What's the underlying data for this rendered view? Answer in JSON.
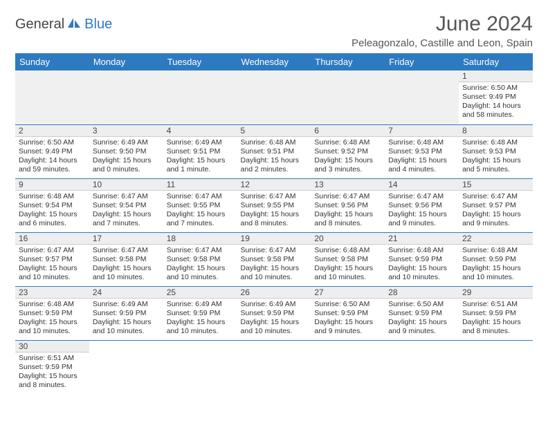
{
  "logo": {
    "part1": "General",
    "part2": "Blue"
  },
  "title": "June 2024",
  "location": "Peleagonzalo, Castille and Leon, Spain",
  "colors": {
    "header_bg": "#2d7ac0",
    "header_text": "#ffffff",
    "daynum_bg": "#eeeeee",
    "row_border": "#2d7ac0",
    "title_color": "#555555",
    "logo_gray": "#444444",
    "logo_blue": "#2d7ac0"
  },
  "daynames": [
    "Sunday",
    "Monday",
    "Tuesday",
    "Wednesday",
    "Thursday",
    "Friday",
    "Saturday"
  ],
  "weeks": [
    [
      null,
      null,
      null,
      null,
      null,
      null,
      {
        "n": "1",
        "sr": "Sunrise: 6:50 AM",
        "ss": "Sunset: 9:49 PM",
        "dl": "Daylight: 14 hours and 58 minutes."
      }
    ],
    [
      {
        "n": "2",
        "sr": "Sunrise: 6:50 AM",
        "ss": "Sunset: 9:49 PM",
        "dl": "Daylight: 14 hours and 59 minutes."
      },
      {
        "n": "3",
        "sr": "Sunrise: 6:49 AM",
        "ss": "Sunset: 9:50 PM",
        "dl": "Daylight: 15 hours and 0 minutes."
      },
      {
        "n": "4",
        "sr": "Sunrise: 6:49 AM",
        "ss": "Sunset: 9:51 PM",
        "dl": "Daylight: 15 hours and 1 minute."
      },
      {
        "n": "5",
        "sr": "Sunrise: 6:48 AM",
        "ss": "Sunset: 9:51 PM",
        "dl": "Daylight: 15 hours and 2 minutes."
      },
      {
        "n": "6",
        "sr": "Sunrise: 6:48 AM",
        "ss": "Sunset: 9:52 PM",
        "dl": "Daylight: 15 hours and 3 minutes."
      },
      {
        "n": "7",
        "sr": "Sunrise: 6:48 AM",
        "ss": "Sunset: 9:53 PM",
        "dl": "Daylight: 15 hours and 4 minutes."
      },
      {
        "n": "8",
        "sr": "Sunrise: 6:48 AM",
        "ss": "Sunset: 9:53 PM",
        "dl": "Daylight: 15 hours and 5 minutes."
      }
    ],
    [
      {
        "n": "9",
        "sr": "Sunrise: 6:48 AM",
        "ss": "Sunset: 9:54 PM",
        "dl": "Daylight: 15 hours and 6 minutes."
      },
      {
        "n": "10",
        "sr": "Sunrise: 6:47 AM",
        "ss": "Sunset: 9:54 PM",
        "dl": "Daylight: 15 hours and 7 minutes."
      },
      {
        "n": "11",
        "sr": "Sunrise: 6:47 AM",
        "ss": "Sunset: 9:55 PM",
        "dl": "Daylight: 15 hours and 7 minutes."
      },
      {
        "n": "12",
        "sr": "Sunrise: 6:47 AM",
        "ss": "Sunset: 9:55 PM",
        "dl": "Daylight: 15 hours and 8 minutes."
      },
      {
        "n": "13",
        "sr": "Sunrise: 6:47 AM",
        "ss": "Sunset: 9:56 PM",
        "dl": "Daylight: 15 hours and 8 minutes."
      },
      {
        "n": "14",
        "sr": "Sunrise: 6:47 AM",
        "ss": "Sunset: 9:56 PM",
        "dl": "Daylight: 15 hours and 9 minutes."
      },
      {
        "n": "15",
        "sr": "Sunrise: 6:47 AM",
        "ss": "Sunset: 9:57 PM",
        "dl": "Daylight: 15 hours and 9 minutes."
      }
    ],
    [
      {
        "n": "16",
        "sr": "Sunrise: 6:47 AM",
        "ss": "Sunset: 9:57 PM",
        "dl": "Daylight: 15 hours and 10 minutes."
      },
      {
        "n": "17",
        "sr": "Sunrise: 6:47 AM",
        "ss": "Sunset: 9:58 PM",
        "dl": "Daylight: 15 hours and 10 minutes."
      },
      {
        "n": "18",
        "sr": "Sunrise: 6:47 AM",
        "ss": "Sunset: 9:58 PM",
        "dl": "Daylight: 15 hours and 10 minutes."
      },
      {
        "n": "19",
        "sr": "Sunrise: 6:47 AM",
        "ss": "Sunset: 9:58 PM",
        "dl": "Daylight: 15 hours and 10 minutes."
      },
      {
        "n": "20",
        "sr": "Sunrise: 6:48 AM",
        "ss": "Sunset: 9:58 PM",
        "dl": "Daylight: 15 hours and 10 minutes."
      },
      {
        "n": "21",
        "sr": "Sunrise: 6:48 AM",
        "ss": "Sunset: 9:59 PM",
        "dl": "Daylight: 15 hours and 10 minutes."
      },
      {
        "n": "22",
        "sr": "Sunrise: 6:48 AM",
        "ss": "Sunset: 9:59 PM",
        "dl": "Daylight: 15 hours and 10 minutes."
      }
    ],
    [
      {
        "n": "23",
        "sr": "Sunrise: 6:48 AM",
        "ss": "Sunset: 9:59 PM",
        "dl": "Daylight: 15 hours and 10 minutes."
      },
      {
        "n": "24",
        "sr": "Sunrise: 6:49 AM",
        "ss": "Sunset: 9:59 PM",
        "dl": "Daylight: 15 hours and 10 minutes."
      },
      {
        "n": "25",
        "sr": "Sunrise: 6:49 AM",
        "ss": "Sunset: 9:59 PM",
        "dl": "Daylight: 15 hours and 10 minutes."
      },
      {
        "n": "26",
        "sr": "Sunrise: 6:49 AM",
        "ss": "Sunset: 9:59 PM",
        "dl": "Daylight: 15 hours and 10 minutes."
      },
      {
        "n": "27",
        "sr": "Sunrise: 6:50 AM",
        "ss": "Sunset: 9:59 PM",
        "dl": "Daylight: 15 hours and 9 minutes."
      },
      {
        "n": "28",
        "sr": "Sunrise: 6:50 AM",
        "ss": "Sunset: 9:59 PM",
        "dl": "Daylight: 15 hours and 9 minutes."
      },
      {
        "n": "29",
        "sr": "Sunrise: 6:51 AM",
        "ss": "Sunset: 9:59 PM",
        "dl": "Daylight: 15 hours and 8 minutes."
      }
    ],
    [
      {
        "n": "30",
        "sr": "Sunrise: 6:51 AM",
        "ss": "Sunset: 9:59 PM",
        "dl": "Daylight: 15 hours and 8 minutes."
      },
      null,
      null,
      null,
      null,
      null,
      null
    ]
  ]
}
